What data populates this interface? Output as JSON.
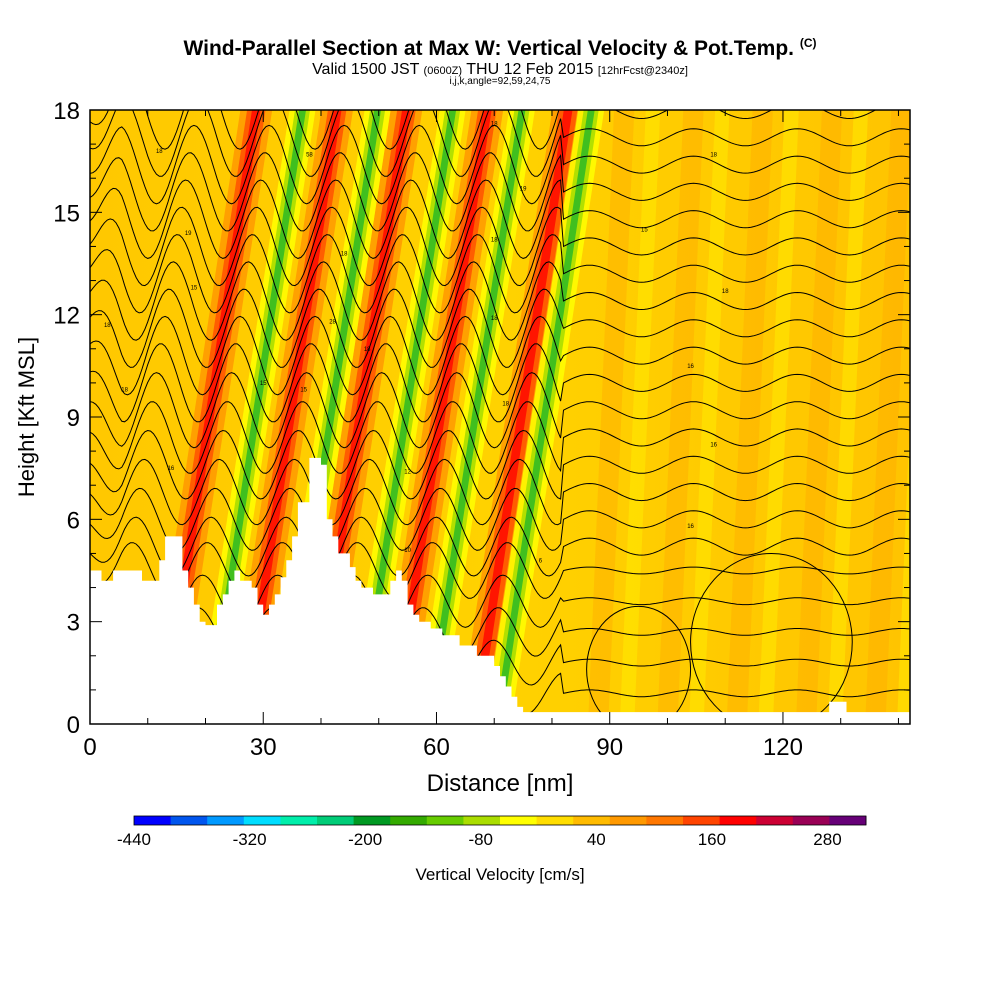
{
  "title": {
    "main": "Wind-Parallel Section at Max W: Vertical Velocity & Pot.Temp.",
    "main_tag": "(C)",
    "valid_prefix": "Valid 1500 JST",
    "valid_utc": "(0600Z)",
    "valid_date": "THU 12 Feb 2015",
    "forecast": "[12hrFcst@2340z]",
    "indices": "i,j,k,angle=92,59,24,75"
  },
  "chart_data": {
    "type": "heatmap",
    "xlabel": "Distance [nm]",
    "ylabel": "Height [Kft MSL]",
    "xlim": [
      0,
      142
    ],
    "ylim": [
      0,
      18
    ],
    "x_ticks": [
      0,
      30,
      60,
      90,
      120
    ],
    "y_ticks": [
      0,
      3,
      6,
      9,
      12,
      15,
      18
    ],
    "colorbar": {
      "label": "Vertical Velocity [cm/s]",
      "min": -440,
      "max": 320,
      "step": 40,
      "tick_labels": [
        "-440",
        "-320",
        "-200",
        "-80",
        "40",
        "160",
        "280"
      ],
      "colors": [
        "#0000ff",
        "#0055ee",
        "#0099ff",
        "#00ddff",
        "#00eeaa",
        "#00cc77",
        "#009922",
        "#33aa00",
        "#66cc00",
        "#aadd00",
        "#ffff00",
        "#ffdd00",
        "#ffbb00",
        "#ff9900",
        "#ff7700",
        "#ff4400",
        "#ff0000",
        "#cc0033",
        "#990055",
        "#660077"
      ]
    },
    "updraft_ridges_nm": [
      18,
      32,
      44,
      58,
      72
    ],
    "downdraft_ridges_nm": [
      26,
      39,
      52,
      64,
      76
    ],
    "terrain_kft": [
      [
        0,
        4.5
      ],
      [
        2,
        4.5
      ],
      [
        2,
        4.2
      ],
      [
        4,
        4.2
      ],
      [
        4,
        4.5
      ],
      [
        9,
        4.5
      ],
      [
        9,
        4.2
      ],
      [
        12,
        4.2
      ],
      [
        12,
        4.8
      ],
      [
        13,
        4.8
      ],
      [
        13,
        5.5
      ],
      [
        16,
        5.5
      ],
      [
        16,
        4.5
      ],
      [
        17,
        4.5
      ],
      [
        17,
        4
      ],
      [
        18,
        4
      ],
      [
        18,
        3.5
      ],
      [
        19,
        3.5
      ],
      [
        19,
        3
      ],
      [
        20,
        3
      ],
      [
        20,
        2.9
      ],
      [
        22,
        2.9
      ],
      [
        22,
        3.5
      ],
      [
        23,
        3.5
      ],
      [
        23,
        3.8
      ],
      [
        24,
        3.8
      ],
      [
        24,
        4.2
      ],
      [
        25,
        4.2
      ],
      [
        25,
        4.5
      ],
      [
        26,
        4.5
      ],
      [
        26,
        4.2
      ],
      [
        28,
        4.2
      ],
      [
        28,
        4
      ],
      [
        29,
        4
      ],
      [
        29,
        3.5
      ],
      [
        30,
        3.5
      ],
      [
        30,
        3.2
      ],
      [
        31,
        3.2
      ],
      [
        31,
        3.5
      ],
      [
        32,
        3.5
      ],
      [
        32,
        3.8
      ],
      [
        33,
        3.8
      ],
      [
        33,
        4.3
      ],
      [
        34,
        4.3
      ],
      [
        34,
        4.8
      ],
      [
        35,
        4.8
      ],
      [
        35,
        5.5
      ],
      [
        36,
        5.5
      ],
      [
        36,
        6.5
      ],
      [
        38,
        6.5
      ],
      [
        38,
        7.8
      ],
      [
        40,
        7.8
      ],
      [
        40,
        7.6
      ],
      [
        41,
        7.6
      ],
      [
        41,
        6
      ],
      [
        42,
        6
      ],
      [
        42,
        5.5
      ],
      [
        43,
        5.5
      ],
      [
        43,
        5
      ],
      [
        45,
        5
      ],
      [
        45,
        4.6
      ],
      [
        46,
        4.6
      ],
      [
        46,
        4.2
      ],
      [
        47,
        4.2
      ],
      [
        47,
        4
      ],
      [
        49,
        4
      ],
      [
        49,
        3.8
      ],
      [
        52,
        3.8
      ],
      [
        52,
        4.2
      ],
      [
        53,
        4.2
      ],
      [
        53,
        4.5
      ],
      [
        54,
        4.5
      ],
      [
        54,
        4.2
      ],
      [
        55,
        4.2
      ],
      [
        55,
        3.5
      ],
      [
        56,
        3.5
      ],
      [
        56,
        3.2
      ],
      [
        57,
        3.2
      ],
      [
        57,
        3
      ],
      [
        59,
        3
      ],
      [
        59,
        2.8
      ],
      [
        61,
        2.8
      ],
      [
        61,
        2.6
      ],
      [
        64,
        2.6
      ],
      [
        64,
        2.3
      ],
      [
        67,
        2.3
      ],
      [
        67,
        2
      ],
      [
        70,
        2
      ],
      [
        70,
        1.7
      ],
      [
        71,
        1.7
      ],
      [
        71,
        1.4
      ],
      [
        72,
        1.4
      ],
      [
        72,
        1.1
      ],
      [
        73,
        1.1
      ],
      [
        73,
        0.8
      ],
      [
        74,
        0.8
      ],
      [
        74,
        0.5
      ],
      [
        75,
        0.5
      ],
      [
        75,
        0.35
      ],
      [
        128,
        0.35
      ],
      [
        128,
        0.65
      ],
      [
        131,
        0.65
      ],
      [
        131,
        0.35
      ],
      [
        142,
        0.35
      ]
    ],
    "isentrope_base_kft": [
      0.9,
      1.8,
      2.7,
      3.6,
      4.5,
      5.2,
      6,
      6.8,
      7.6,
      8.4,
      9.2,
      10,
      10.8,
      11.6,
      12.4,
      13.2,
      14,
      14.8,
      15.6,
      16.4,
      17.2,
      18
    ],
    "isentrope_labels": [
      {
        "x": 12,
        "y": 16.8,
        "text": "18"
      },
      {
        "x": 17,
        "y": 14.4,
        "text": "19"
      },
      {
        "x": 18,
        "y": 12.8,
        "text": "15"
      },
      {
        "x": 3,
        "y": 11.7,
        "text": "18"
      },
      {
        "x": 6,
        "y": 9.8,
        "text": "18"
      },
      {
        "x": 14,
        "y": 7.5,
        "text": "16"
      },
      {
        "x": 38,
        "y": 16.7,
        "text": "58"
      },
      {
        "x": 44,
        "y": 13.8,
        "text": "18"
      },
      {
        "x": 42,
        "y": 11.8,
        "text": "28"
      },
      {
        "x": 48,
        "y": 11,
        "text": "18"
      },
      {
        "x": 30,
        "y": 10,
        "text": "15"
      },
      {
        "x": 37,
        "y": 9.8,
        "text": "15"
      },
      {
        "x": 70,
        "y": 17.6,
        "text": "18"
      },
      {
        "x": 75,
        "y": 15.7,
        "text": "19"
      },
      {
        "x": 70,
        "y": 14.2,
        "text": "18"
      },
      {
        "x": 70,
        "y": 11.9,
        "text": "18"
      },
      {
        "x": 72,
        "y": 9.4,
        "text": "18"
      },
      {
        "x": 55,
        "y": 7.4,
        "text": "12"
      },
      {
        "x": 55,
        "y": 5.1,
        "text": "10"
      },
      {
        "x": 78,
        "y": 4.8,
        "text": "6"
      },
      {
        "x": 96,
        "y": 14.5,
        "text": "15"
      },
      {
        "x": 108,
        "y": 16.7,
        "text": "18"
      },
      {
        "x": 110,
        "y": 12.7,
        "text": "18"
      },
      {
        "x": 104,
        "y": 10.5,
        "text": "16"
      },
      {
        "x": 108,
        "y": 8.2,
        "text": "16"
      },
      {
        "x": 104,
        "y": 5.8,
        "text": "16"
      }
    ]
  }
}
